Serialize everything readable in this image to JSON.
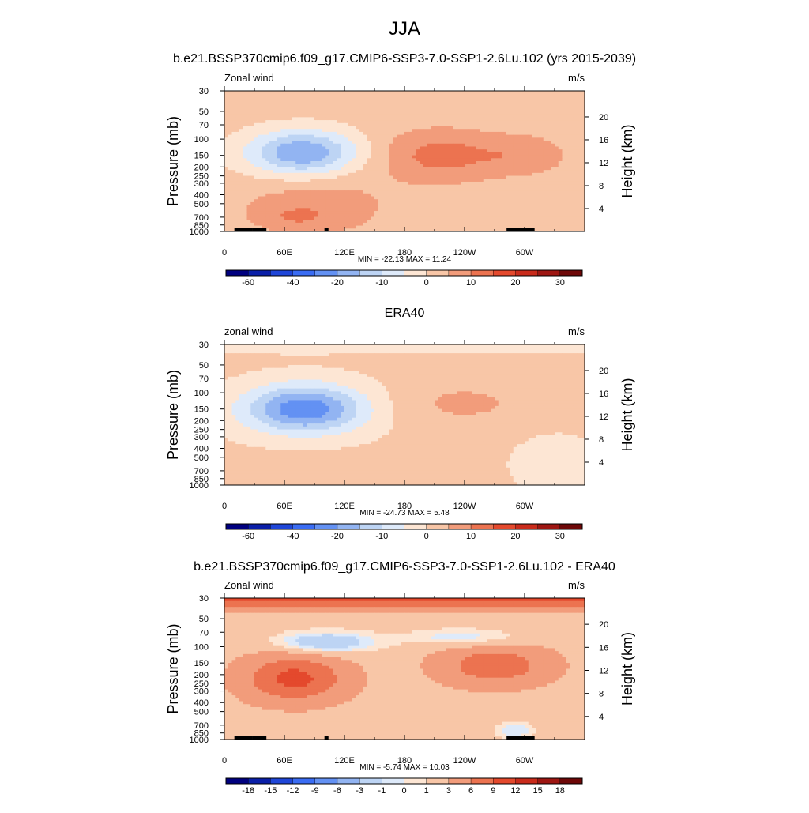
{
  "figure": {
    "season_title": "JJA",
    "subtitle_model": "b.e21.BSSP370cmip6.f09_g17.CMIP6-SSP3-7.0-SSP1-2.6Lu.102 (yrs 2015-2039)",
    "subtitle_obs": "ERA40",
    "subtitle_diff": "b.e21.BSSP370cmip6.f09_g17.CMIP6-SSP3-7.0-SSP1-2.6Lu.102 - ERA40"
  },
  "colors": {
    "abs_scale": [
      "#00007f",
      "#0a1fa8",
      "#1f46d8",
      "#3a6cf3",
      "#6391f3",
      "#92b4f2",
      "#bdd4f4",
      "#deeafa",
      "#fde6d4",
      "#f8c6a7",
      "#f29c7b",
      "#ec7350",
      "#e4492d",
      "#c92b1b",
      "#9e1612",
      "#6e0808"
    ],
    "diff_scale": [
      "#00007f",
      "#0a1fa8",
      "#1f46d8",
      "#3a6cf3",
      "#6391f3",
      "#92b4f2",
      "#bdd4f4",
      "#deeafa",
      "#fde6d4",
      "#f8c6a7",
      "#f29c7b",
      "#ec7350",
      "#e4492d",
      "#c92b1b",
      "#9e1612",
      "#6e0808"
    ],
    "topography": "#000000"
  },
  "chart_data": [
    {
      "type": "heatmap",
      "panel": "model",
      "corner_label_left": "Zonal wind",
      "corner_label_right": "m/s",
      "ylabel": "Pressure (mb)",
      "ylabel_right": "Height (km)",
      "x_ticks": [
        "0",
        "60E",
        "120E",
        "180",
        "120W",
        "60W"
      ],
      "x_tick_lon": [
        0,
        60,
        120,
        180,
        240,
        300
      ],
      "xlim": [
        0,
        360
      ],
      "p_ticks": [
        "30",
        "50",
        "70",
        "100",
        "150",
        "200",
        "250",
        "300",
        "400",
        "500",
        "700",
        "850",
        "1000"
      ],
      "p_tick_values": [
        30,
        50,
        70,
        100,
        150,
        200,
        250,
        300,
        400,
        500,
        700,
        850,
        1000
      ],
      "ylim": [
        1000,
        30
      ],
      "yscale": "log",
      "h_ticks": [
        "4",
        "8",
        "12",
        "16",
        "20"
      ],
      "h_tick_values": [
        4,
        8,
        12,
        16,
        20
      ],
      "min_max_text": "MIN = -22.13  MAX =  11.24",
      "contour_levels": [
        -70,
        -60,
        -50,
        -40,
        -30,
        -20,
        -15,
        -10,
        -5,
        0,
        5,
        10,
        15,
        20,
        25,
        30,
        35
      ],
      "colorbar_labels": [
        "-60",
        "-40",
        "-20",
        "-10",
        "0",
        "10",
        "20",
        "30"
      ],
      "colorbar_label_edges": [
        1,
        3,
        5,
        7,
        9,
        11,
        13,
        15
      ],
      "features": [
        {
          "lon": 78,
          "p": 140,
          "value": -22,
          "dlon": 55,
          "dlogp": 0.24
        },
        {
          "lon": 215,
          "p": 150,
          "value": 10,
          "dlon": 60,
          "dlogp": 0.28
        },
        {
          "lon": 300,
          "p": 150,
          "value": 6,
          "dlon": 45,
          "dlogp": 0.22
        },
        {
          "lon": 90,
          "p": 550,
          "value": 6,
          "dlon": 75,
          "dlogp": 0.32
        },
        {
          "lon": 70,
          "p": 700,
          "value": 4,
          "dlon": 35,
          "dlogp": 0.12
        }
      ],
      "background_value": 2,
      "topography": [
        [
          10,
          28
        ],
        [
          28,
          42
        ],
        [
          100,
          104
        ],
        [
          282,
          310
        ]
      ]
    },
    {
      "type": "heatmap",
      "panel": "obs",
      "corner_label_left": "zonal wind",
      "corner_label_right": "m/s",
      "ylabel": "Pressure (mb)",
      "ylabel_right": "Height (km)",
      "x_ticks": [
        "0",
        "60E",
        "120E",
        "180",
        "120W",
        "60W"
      ],
      "x_tick_lon": [
        0,
        60,
        120,
        180,
        240,
        300
      ],
      "xlim": [
        0,
        360
      ],
      "p_ticks": [
        "30",
        "50",
        "70",
        "100",
        "150",
        "200",
        "250",
        "300",
        "400",
        "500",
        "700",
        "850",
        "1000"
      ],
      "p_tick_values": [
        30,
        50,
        70,
        100,
        150,
        200,
        250,
        300,
        400,
        500,
        700,
        850,
        1000
      ],
      "ylim": [
        1000,
        30
      ],
      "yscale": "log",
      "h_ticks": [
        "4",
        "8",
        "12",
        "16",
        "20"
      ],
      "h_tick_values": [
        4,
        8,
        12,
        16,
        20
      ],
      "min_max_text": "MIN = -24.73  MAX =   5.48",
      "contour_levels": [
        -70,
        -60,
        -50,
        -40,
        -30,
        -20,
        -15,
        -10,
        -5,
        0,
        5,
        10,
        15,
        20,
        25,
        30,
        35
      ],
      "colorbar_labels": [
        "-60",
        "-40",
        "-20",
        "-10",
        "0",
        "10",
        "20",
        "30"
      ],
      "colorbar_label_edges": [
        1,
        3,
        5,
        7,
        9,
        11,
        13,
        15
      ],
      "features": [
        {
          "lon": 80,
          "p": 150,
          "value": -25,
          "dlon": 60,
          "dlogp": 0.26
        },
        {
          "lon": 240,
          "p": 130,
          "value": 5,
          "dlon": 70,
          "dlogp": 0.25
        },
        {
          "lon": 80,
          "p": 700,
          "value": 4,
          "dlon": 40,
          "dlogp": 0.15
        },
        {
          "lon": 330,
          "p": 600,
          "value": -4,
          "dlon": 40,
          "dlogp": 0.3
        }
      ],
      "background_value": 1,
      "top_layer_value": -3
    },
    {
      "type": "heatmap",
      "panel": "difference",
      "corner_label_left": "Zonal wind",
      "corner_label_right": "m/s",
      "ylabel": "Pressure (mb)",
      "ylabel_right": "Height (km)",
      "x_ticks": [
        "0",
        "60E",
        "120E",
        "180",
        "120W",
        "60W"
      ],
      "x_tick_lon": [
        0,
        60,
        120,
        180,
        240,
        300
      ],
      "xlim": [
        0,
        360
      ],
      "p_ticks": [
        "30",
        "50",
        "70",
        "100",
        "150",
        "200",
        "250",
        "300",
        "400",
        "500",
        "700",
        "850",
        "1000"
      ],
      "p_tick_values": [
        30,
        50,
        70,
        100,
        150,
        200,
        250,
        300,
        400,
        500,
        700,
        850,
        1000
      ],
      "ylim": [
        1000,
        30
      ],
      "yscale": "log",
      "h_ticks": [
        "4",
        "8",
        "12",
        "16",
        "20"
      ],
      "h_tick_values": [
        4,
        8,
        12,
        16,
        20
      ],
      "min_max_text": "MIN =  -5.74  MAX =  10.03",
      "contour_levels": [
        -21,
        -18,
        -15,
        -12,
        -9,
        -6,
        -3,
        -1,
        0,
        1,
        3,
        6,
        9,
        12,
        15,
        18,
        21
      ],
      "colorbar_labels": [
        "-18",
        "-15",
        "-12",
        "-9",
        "-6",
        "-3",
        "-1",
        "0",
        "1",
        "3",
        "6",
        "9",
        "12",
        "15",
        "18"
      ],
      "colorbar_label_edges": [
        1,
        2,
        3,
        4,
        5,
        6,
        7,
        8,
        9,
        10,
        11,
        12,
        13,
        14,
        15
      ],
      "features": [
        {
          "lon": 70,
          "p": 220,
          "value": 8,
          "dlon": 50,
          "dlogp": 0.25
        },
        {
          "lon": 270,
          "p": 160,
          "value": 6,
          "dlon": 55,
          "dlogp": 0.22
        },
        {
          "lon": 100,
          "p": 90,
          "value": -5,
          "dlon": 50,
          "dlogp": 0.12
        },
        {
          "lon": 240,
          "p": 80,
          "value": -3,
          "dlon": 60,
          "dlogp": 0.1
        },
        {
          "lon": 290,
          "p": 800,
          "value": -3,
          "dlon": 20,
          "dlogp": 0.1
        }
      ],
      "background_value": 2,
      "top_layer_value": 8,
      "topography": [
        [
          10,
          28
        ],
        [
          28,
          42
        ],
        [
          100,
          104
        ],
        [
          282,
          310
        ]
      ]
    }
  ]
}
